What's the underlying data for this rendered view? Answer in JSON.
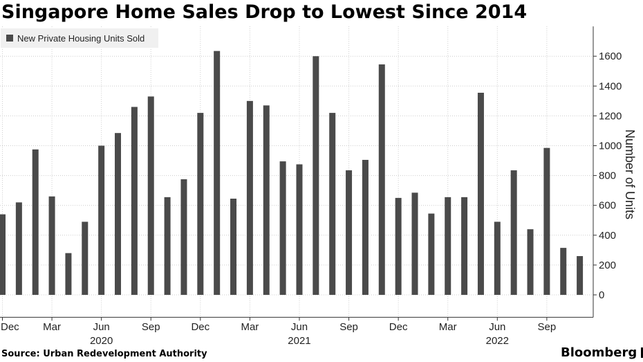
{
  "title": "Singapore Home Sales Drop to Lowest Since 2014",
  "source": "Source:  Urban Redevelopment Authority",
  "brand": "Bloomberg",
  "brand_icon": "bloomberg-terminal-icon",
  "colors": {
    "bar": "#4a4a4a",
    "grid": "#cccccc",
    "axis": "#333333",
    "legend_bg": "#f0f0f0"
  },
  "chart_data": {
    "type": "bar",
    "legend": [
      "New Private Housing Units Sold"
    ],
    "ylabel": "Number of Units",
    "ylim": [
      -150,
      1800
    ],
    "yticks": [
      0,
      200,
      400,
      600,
      800,
      1000,
      1200,
      1400,
      1600
    ],
    "y_axis_side": "right",
    "grid": true,
    "legend_position": "top-left",
    "categories": [
      "Dec 2019",
      "Jan 2020",
      "Feb 2020",
      "Mar 2020",
      "Apr 2020",
      "May 2020",
      "Jun 2020",
      "Jul 2020",
      "Aug 2020",
      "Sep 2020",
      "Oct 2020",
      "Nov 2020",
      "Dec 2020",
      "Jan 2021",
      "Feb 2021",
      "Mar 2021",
      "Apr 2021",
      "May 2021",
      "Jun 2021",
      "Jul 2021",
      "Aug 2021",
      "Sep 2021",
      "Oct 2021",
      "Nov 2021",
      "Dec 2021",
      "Jan 2022",
      "Feb 2022",
      "Mar 2022",
      "Apr 2022",
      "May 2022",
      "Jun 2022",
      "Jul 2022",
      "Aug 2022",
      "Sep 2022",
      "Oct 2022",
      "Nov 2022"
    ],
    "series": [
      {
        "name": "New Private Housing Units Sold",
        "values": [
          540,
          620,
          975,
          660,
          280,
          490,
          1000,
          1085,
          1260,
          1330,
          655,
          775,
          1220,
          1635,
          645,
          1300,
          1270,
          895,
          875,
          1600,
          1220,
          835,
          905,
          1545,
          650,
          685,
          545,
          655,
          655,
          1355,
          490,
          835,
          440,
          985,
          315,
          260
        ]
      }
    ],
    "x_tick_labels": [
      {
        "index": 0,
        "month": "Dec",
        "year": ""
      },
      {
        "index": 3,
        "month": "Mar",
        "year": ""
      },
      {
        "index": 6,
        "month": "Jun",
        "year": "2020"
      },
      {
        "index": 9,
        "month": "Sep",
        "year": ""
      },
      {
        "index": 12,
        "month": "Dec",
        "year": ""
      },
      {
        "index": 15,
        "month": "Mar",
        "year": ""
      },
      {
        "index": 18,
        "month": "Jun",
        "year": "2021"
      },
      {
        "index": 21,
        "month": "Sep",
        "year": ""
      },
      {
        "index": 24,
        "month": "Dec",
        "year": ""
      },
      {
        "index": 27,
        "month": "Mar",
        "year": ""
      },
      {
        "index": 30,
        "month": "Jun",
        "year": "2022"
      },
      {
        "index": 33,
        "month": "Sep",
        "year": ""
      }
    ]
  }
}
